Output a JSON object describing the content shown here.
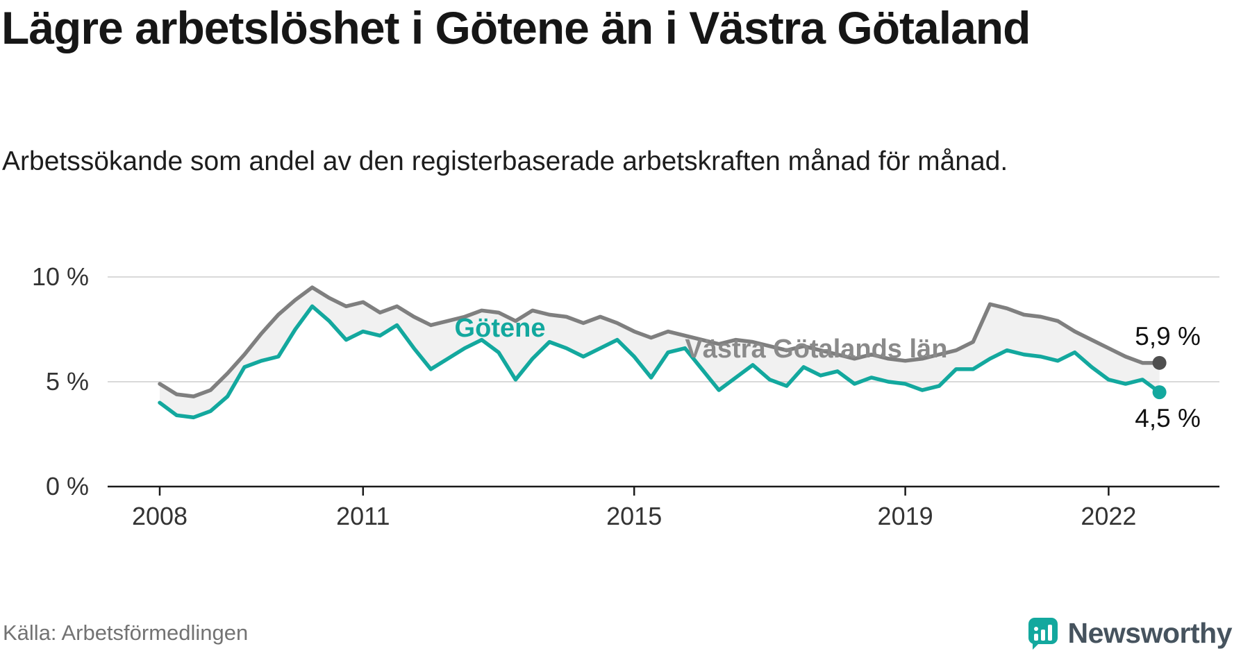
{
  "header": {
    "title": "Lägre arbetslöshet i Götene än i Västra Götaland",
    "subtitle": "Arbetssökande som andel av den registerbaserade arbetskraften månad för månad."
  },
  "footer": {
    "source": "Källa: Arbetsförmedlingen",
    "brand": "Newsworthy"
  },
  "colors": {
    "grid": "#d9d9d9",
    "axis": "#1a1a1a",
    "tick_text": "#333333",
    "fill_between": "rgba(150,150,150,0.13)",
    "end_label_text": "#111111",
    "brand_teal": "#13a89e",
    "brand_text": "#46535e"
  },
  "chart_data": {
    "type": "line",
    "x": [
      2008,
      2008.25,
      2008.5,
      2008.75,
      2009,
      2009.25,
      2009.5,
      2009.75,
      2010,
      2010.25,
      2010.5,
      2010.75,
      2011,
      2011.25,
      2011.5,
      2011.75,
      2012,
      2012.25,
      2012.5,
      2012.75,
      2013,
      2013.25,
      2013.5,
      2013.75,
      2014,
      2014.25,
      2014.5,
      2014.75,
      2015,
      2015.25,
      2015.5,
      2015.75,
      2016,
      2016.25,
      2016.5,
      2016.75,
      2017,
      2017.25,
      2017.5,
      2017.75,
      2018,
      2018.25,
      2018.5,
      2018.75,
      2019,
      2019.25,
      2019.5,
      2019.75,
      2020,
      2020.25,
      2020.5,
      2020.75,
      2021,
      2021.25,
      2021.5,
      2021.75,
      2022,
      2022.25,
      2022.5,
      2022.75
    ],
    "series": [
      {
        "name": "Västra Götalands län",
        "color": "#7f7f7f",
        "label_color": "#8a8a8a",
        "dot_color": "#4f4f4f",
        "end_label": "5,9 %",
        "values": [
          4.9,
          4.4,
          4.3,
          4.6,
          5.4,
          6.3,
          7.3,
          8.2,
          8.9,
          9.5,
          9.0,
          8.6,
          8.8,
          8.3,
          8.6,
          8.1,
          7.7,
          7.9,
          8.1,
          8.4,
          8.3,
          7.9,
          8.4,
          8.2,
          8.1,
          7.8,
          8.1,
          7.8,
          7.4,
          7.1,
          7.4,
          7.2,
          7.0,
          6.8,
          7.0,
          6.9,
          6.7,
          6.5,
          6.7,
          6.5,
          6.3,
          6.1,
          6.3,
          6.1,
          6.0,
          6.1,
          6.3,
          6.5,
          6.9,
          8.7,
          8.5,
          8.2,
          8.1,
          7.9,
          7.4,
          7.0,
          6.6,
          6.2,
          5.9,
          5.9
        ]
      },
      {
        "name": "Götene",
        "color": "#13a89e",
        "label_color": "#13a89e",
        "dot_color": "#13a89e",
        "end_label": "4,5 %",
        "values": [
          4.0,
          3.4,
          3.3,
          3.6,
          4.3,
          5.7,
          6.0,
          6.2,
          7.5,
          8.6,
          7.9,
          7.0,
          7.4,
          7.2,
          7.7,
          6.6,
          5.6,
          6.1,
          6.6,
          7.0,
          6.4,
          5.1,
          6.1,
          6.9,
          6.6,
          6.2,
          6.6,
          7.0,
          6.2,
          5.2,
          6.4,
          6.6,
          5.6,
          4.6,
          5.2,
          5.8,
          5.1,
          4.8,
          5.7,
          5.3,
          5.5,
          4.9,
          5.2,
          5.0,
          4.9,
          4.6,
          4.8,
          5.6,
          5.6,
          6.1,
          6.5,
          6.3,
          6.2,
          6.0,
          6.4,
          5.7,
          5.1,
          4.9,
          5.1,
          4.5
        ]
      }
    ],
    "ylim": [
      0,
      10
    ],
    "yticks": [
      {
        "v": 0,
        "label": "0 %"
      },
      {
        "v": 5,
        "label": "5 %"
      },
      {
        "v": 10,
        "label": "10 %"
      }
    ],
    "xticks": [
      {
        "v": 2008,
        "label": "2008"
      },
      {
        "v": 2011,
        "label": "2011"
      },
      {
        "v": 2015,
        "label": "2015"
      },
      {
        "v": 2019,
        "label": "2019"
      },
      {
        "v": 2022,
        "label": "2022"
      }
    ],
    "grid": true,
    "legend": "inline-labels"
  }
}
